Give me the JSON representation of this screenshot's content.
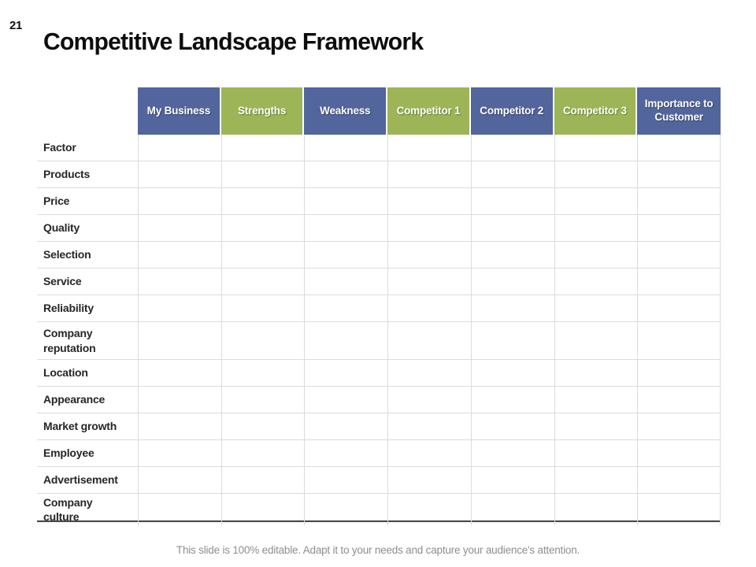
{
  "page": {
    "number": "21",
    "title": "Competitive Landscape Framework"
  },
  "table": {
    "columns": [
      {
        "label": "My Business",
        "color": "blue"
      },
      {
        "label": "Strengths",
        "color": "green"
      },
      {
        "label": "Weakness",
        "color": "blue"
      },
      {
        "label": "Competitor 1",
        "color": "green"
      },
      {
        "label": "Competitor 2",
        "color": "blue"
      },
      {
        "label": "Competitor 3",
        "color": "green"
      },
      {
        "label": "Importance to Customer",
        "color": "blue"
      }
    ],
    "rows": [
      {
        "label": "Factor",
        "cells": [
          "",
          "",
          "",
          "",
          "",
          "",
          ""
        ]
      },
      {
        "label": "Products",
        "cells": [
          "",
          "",
          "",
          "",
          "",
          "",
          ""
        ]
      },
      {
        "label": "Price",
        "cells": [
          "",
          "",
          "",
          "",
          "",
          "",
          ""
        ]
      },
      {
        "label": "Quality",
        "cells": [
          "",
          "",
          "",
          "",
          "",
          "",
          ""
        ]
      },
      {
        "label": "Selection",
        "cells": [
          "",
          "",
          "",
          "",
          "",
          "",
          ""
        ]
      },
      {
        "label": "Service",
        "cells": [
          "",
          "",
          "",
          "",
          "",
          "",
          ""
        ]
      },
      {
        "label": "Reliability",
        "cells": [
          "",
          "",
          "",
          "",
          "",
          "",
          ""
        ]
      },
      {
        "label": "Company reputation",
        "cells": [
          "",
          "",
          "",
          "",
          "",
          "",
          ""
        ]
      },
      {
        "label": "Location",
        "cells": [
          "",
          "",
          "",
          "",
          "",
          "",
          ""
        ]
      },
      {
        "label": "Appearance",
        "cells": [
          "",
          "",
          "",
          "",
          "",
          "",
          ""
        ]
      },
      {
        "label": "Market growth",
        "cells": [
          "",
          "",
          "",
          "",
          "",
          "",
          ""
        ]
      },
      {
        "label": "Employee",
        "cells": [
          "",
          "",
          "",
          "",
          "",
          "",
          ""
        ]
      },
      {
        "label": "Advertisement",
        "cells": [
          "",
          "",
          "",
          "",
          "",
          "",
          ""
        ]
      },
      {
        "label": "Company culture",
        "cells": [
          "",
          "",
          "",
          "",
          "",
          "",
          ""
        ]
      }
    ]
  },
  "footer": {
    "note": "This slide is 100% editable. Adapt it to your needs and capture your audience's attention."
  },
  "colors": {
    "header_blue": "#52659c",
    "header_green": "#9db557",
    "gridline": "#dcdcdc",
    "table_bottom_border": "#4a4a4a",
    "title_text": "#0d0d0d",
    "row_label_text": "#262626",
    "footer_text": "#8e8e8e"
  }
}
